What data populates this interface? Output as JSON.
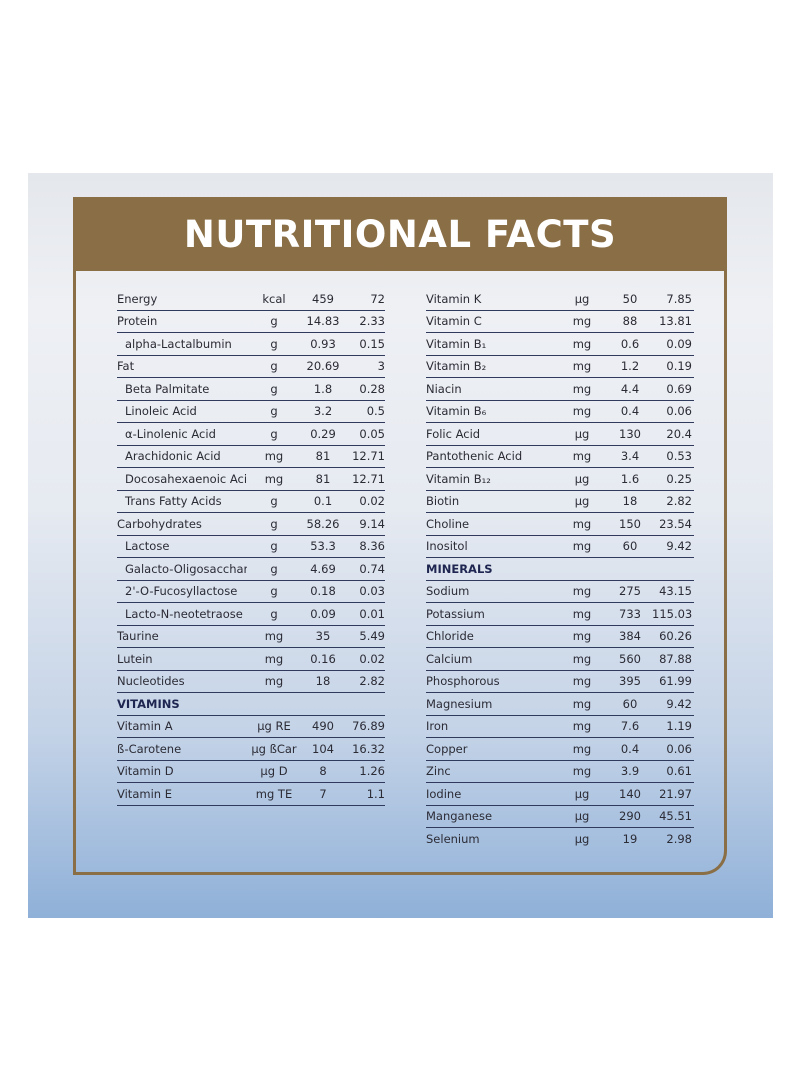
{
  "title": "NUTRITIONAL FACTS",
  "left": [
    {
      "name": "Energy",
      "unit": "kcal",
      "v1": "459",
      "v2": "72",
      "indent": false
    },
    {
      "name": "Protein",
      "unit": "g",
      "v1": "14.83",
      "v2": "2.33",
      "indent": false
    },
    {
      "name": "alpha-Lactalbumin",
      "unit": "g",
      "v1": "0.93",
      "v2": "0.15",
      "indent": true
    },
    {
      "name": "Fat",
      "unit": "g",
      "v1": "20.69",
      "v2": "3",
      "indent": false
    },
    {
      "name": "Beta Palmitate",
      "unit": "g",
      "v1": "1.8",
      "v2": "0.28",
      "indent": true
    },
    {
      "name": "Linoleic Acid",
      "unit": "g",
      "v1": "3.2",
      "v2": "0.5",
      "indent": true
    },
    {
      "name": "α-Linolenic Acid",
      "unit": "g",
      "v1": "0.29",
      "v2": "0.05",
      "indent": true
    },
    {
      "name": "Arachidonic Acid",
      "unit": "mg",
      "v1": "81",
      "v2": "12.71",
      "indent": true
    },
    {
      "name": "Docosahexaenoic Acid",
      "unit": "mg",
      "v1": "81",
      "v2": "12.71",
      "indent": true
    },
    {
      "name": "Trans Fatty Acids",
      "unit": "g",
      "v1": "0.1",
      "v2": "0.02",
      "indent": true
    },
    {
      "name": "Carbohydrates",
      "unit": "g",
      "v1": "58.26",
      "v2": "9.14",
      "indent": false
    },
    {
      "name": "Lactose",
      "unit": "g",
      "v1": "53.3",
      "v2": "8.36",
      "indent": true
    },
    {
      "name": "Galacto-Oligosaccharides",
      "unit": "g",
      "v1": "4.69",
      "v2": "0.74",
      "indent": true
    },
    {
      "name": "2'-O-Fucosyllactose",
      "unit": "g",
      "v1": "0.18",
      "v2": "0.03",
      "indent": true
    },
    {
      "name": "Lacto-N-neotetraose",
      "unit": "g",
      "v1": "0.09",
      "v2": "0.01",
      "indent": true
    },
    {
      "name": "Taurine",
      "unit": "mg",
      "v1": "35",
      "v2": "5.49",
      "indent": false
    },
    {
      "name": "Lutein",
      "unit": "mg",
      "v1": "0.16",
      "v2": "0.02",
      "indent": false
    },
    {
      "name": "Nucleotides",
      "unit": "mg",
      "v1": "18",
      "v2": "2.82",
      "indent": false
    },
    {
      "section": "VITAMINS"
    },
    {
      "name": "Vitamin A",
      "unit": "µg RE",
      "v1": "490",
      "v2": "76.89",
      "indent": false
    },
    {
      "name": "ß-Carotene",
      "unit": "µg ßCar",
      "v1": "104",
      "v2": "16.32",
      "indent": false
    },
    {
      "name": "Vitamin D",
      "unit": "µg D",
      "v1": "8",
      "v2": "1.26",
      "indent": false
    },
    {
      "name": "Vitamin E",
      "unit": "mg TE",
      "v1": "7",
      "v2": "1.1",
      "indent": false
    }
  ],
  "right": [
    {
      "name": "Vitamin K",
      "unit": "µg",
      "v1": "50",
      "v2": "7.85"
    },
    {
      "name": "Vitamin C",
      "unit": "mg",
      "v1": "88",
      "v2": "13.81"
    },
    {
      "name": "Vitamin B₁",
      "unit": "mg",
      "v1": "0.6",
      "v2": "0.09"
    },
    {
      "name": "Vitamin B₂",
      "unit": "mg",
      "v1": "1.2",
      "v2": "0.19"
    },
    {
      "name": "Niacin",
      "unit": "mg",
      "v1": "4.4",
      "v2": "0.69"
    },
    {
      "name": "Vitamin B₆",
      "unit": "mg",
      "v1": "0.4",
      "v2": "0.06"
    },
    {
      "name": "Folic Acid",
      "unit": "µg",
      "v1": "130",
      "v2": "20.4"
    },
    {
      "name": "Pantothenic Acid",
      "unit": "mg",
      "v1": "3.4",
      "v2": "0.53"
    },
    {
      "name": "Vitamin B₁₂",
      "unit": "µg",
      "v1": "1.6",
      "v2": "0.25"
    },
    {
      "name": "Biotin",
      "unit": "µg",
      "v1": "18",
      "v2": "2.82"
    },
    {
      "name": "Choline",
      "unit": "mg",
      "v1": "150",
      "v2": "23.54"
    },
    {
      "name": "Inositol",
      "unit": "mg",
      "v1": "60",
      "v2": "9.42"
    },
    {
      "section": "MINERALS"
    },
    {
      "name": "Sodium",
      "unit": "mg",
      "v1": "275",
      "v2": "43.15"
    },
    {
      "name": "Potassium",
      "unit": "mg",
      "v1": "733",
      "v2": "115.03"
    },
    {
      "name": "Chloride",
      "unit": "mg",
      "v1": "384",
      "v2": "60.26"
    },
    {
      "name": "Calcium",
      "unit": "mg",
      "v1": "560",
      "v2": "87.88"
    },
    {
      "name": "Phosphorous",
      "unit": "mg",
      "v1": "395",
      "v2": "61.99"
    },
    {
      "name": "Magnesium",
      "unit": "mg",
      "v1": "60",
      "v2": "9.42"
    },
    {
      "name": "Iron",
      "unit": "mg",
      "v1": "7.6",
      "v2": "1.19"
    },
    {
      "name": "Copper",
      "unit": "mg",
      "v1": "0.4",
      "v2": "0.06"
    },
    {
      "name": "Zinc",
      "unit": "mg",
      "v1": "3.9",
      "v2": "0.61"
    },
    {
      "name": "Iodine",
      "unit": "µg",
      "v1": "140",
      "v2": "21.97"
    },
    {
      "name": "Manganese",
      "unit": "µg",
      "v1": "290",
      "v2": "45.51"
    },
    {
      "name": "Selenium",
      "unit": "µg",
      "v1": "19",
      "v2": "2.98"
    }
  ]
}
